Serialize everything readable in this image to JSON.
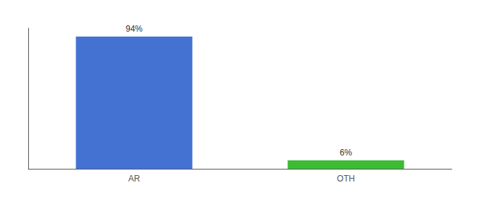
{
  "chart_data": {
    "type": "bar",
    "categories": [
      "AR",
      "OTH"
    ],
    "values": [
      94,
      6
    ],
    "value_labels": [
      "94%",
      "6%"
    ],
    "colors": [
      "#4472d3",
      "#3dbb35"
    ],
    "data_labels": true,
    "ylim": [
      0,
      100
    ],
    "tick_labels": "x",
    "grid": false
  }
}
